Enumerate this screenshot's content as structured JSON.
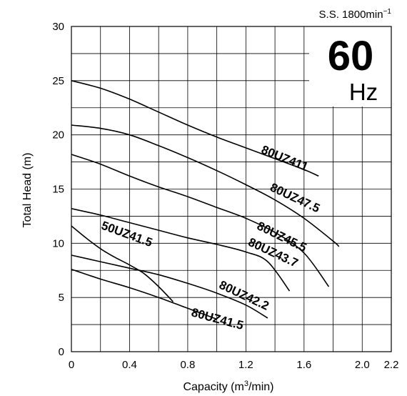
{
  "speed_label": "S.S. 1800min",
  "speed_superscript": "−1",
  "frequency": {
    "value": "60",
    "unit": "Hz"
  },
  "chart_data": {
    "type": "line",
    "title": "",
    "xlabel": "Capacity (m³/min)",
    "ylabel": "Total Head (m)",
    "xlim": [
      0,
      2.2
    ],
    "ylim": [
      0,
      30
    ],
    "x_ticks": [
      0,
      0.4,
      0.8,
      1.2,
      1.6,
      2.0,
      2.2
    ],
    "x_tick_labels": [
      "0",
      "0.4",
      "0.8",
      "1.2",
      "1.6",
      "2.0",
      "2.2"
    ],
    "y_ticks": [
      0,
      5,
      10,
      15,
      20,
      25,
      30
    ],
    "y_tick_labels": [
      "0",
      "5",
      "10",
      "15",
      "20",
      "25",
      "30"
    ],
    "grid": true,
    "series": [
      {
        "name": "80UZ411",
        "x": [
          0,
          0.2,
          0.4,
          0.6,
          0.8,
          1.0,
          1.2,
          1.4,
          1.6,
          1.7
        ],
        "y": [
          25.0,
          24.3,
          23.3,
          22.1,
          20.9,
          19.8,
          18.8,
          17.8,
          16.8,
          16.2
        ]
      },
      {
        "name": "80UZ47.5",
        "x": [
          0,
          0.2,
          0.4,
          0.6,
          0.8,
          1.0,
          1.2,
          1.4,
          1.6,
          1.8,
          1.84
        ],
        "y": [
          20.9,
          20.6,
          20.0,
          19.0,
          17.9,
          16.7,
          15.4,
          14.0,
          12.3,
          10.2,
          9.7
        ]
      },
      {
        "name": "80UZ45.5",
        "x": [
          0,
          0.2,
          0.4,
          0.6,
          0.8,
          1.0,
          1.2,
          1.4,
          1.6,
          1.77
        ],
        "y": [
          18.2,
          17.3,
          16.2,
          15.2,
          14.3,
          13.3,
          12.3,
          11.0,
          9.1,
          6.0
        ]
      },
      {
        "name": "80UZ43.7",
        "x": [
          0,
          0.2,
          0.4,
          0.6,
          0.8,
          1.0,
          1.2,
          1.35,
          1.5
        ],
        "y": [
          13.2,
          12.6,
          11.9,
          11.2,
          10.5,
          9.9,
          9.2,
          8.3,
          5.6
        ]
      },
      {
        "name": "80UZ42.2",
        "x": [
          0,
          0.2,
          0.4,
          0.6,
          0.8,
          1.0,
          1.2,
          1.35
        ],
        "y": [
          8.9,
          8.3,
          7.7,
          7.1,
          6.3,
          5.4,
          4.3,
          3.1
        ]
      },
      {
        "name": "80UZ41.5",
        "x": [
          0,
          0.2,
          0.4,
          0.6,
          0.8,
          1.0
        ],
        "y": [
          7.6,
          6.7,
          5.9,
          5.0,
          4.0,
          3.0
        ]
      },
      {
        "name": "50UZ41.5",
        "x": [
          0,
          0.1,
          0.2,
          0.3,
          0.4,
          0.5,
          0.6,
          0.7
        ],
        "y": [
          11.6,
          10.5,
          9.5,
          8.7,
          8.0,
          7.2,
          6.0,
          4.6
        ]
      }
    ]
  }
}
